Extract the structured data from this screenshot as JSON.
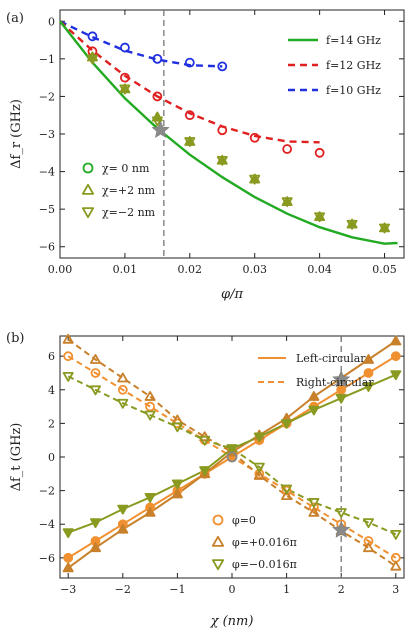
{
  "chart_data": [
    {
      "type": "scatter",
      "panel_label": "(a)",
      "xlabel": "φ/π",
      "ylabel": "Δf_r (GHz)",
      "xlim": [
        0,
        0.053
      ],
      "ylim": [
        -6.3,
        0.3
      ],
      "xticks": [
        0.0,
        0.01,
        0.02,
        0.03,
        0.04,
        0.05
      ],
      "xtick_labels": [
        "0.00",
        "0.01",
        "0.02",
        "0.03",
        "0.04",
        "0.05"
      ],
      "yticks": [
        0,
        -1,
        -2,
        -3,
        -4,
        -5,
        -6
      ],
      "ytick_labels": [
        "0",
        "−1",
        "−2",
        "−3",
        "−4",
        "−5",
        "−6"
      ],
      "vline_x": 0.016,
      "star": {
        "x": 0.0155,
        "y": -2.9
      },
      "legend_lines": [
        {
          "label": "f=14 GHz",
          "color": "#22aa22",
          "dash": "solid"
        },
        {
          "label": "f=12 GHz",
          "color": "#e02020",
          "dash": "dashed"
        },
        {
          "label": "f=10 GHz",
          "color": "#2030e0",
          "dash": "dashed"
        }
      ],
      "legend_markers": [
        {
          "label": "χ= 0 nm",
          "marker": "circle"
        },
        {
          "label": "χ=+2 nm",
          "marker": "triangle-up"
        },
        {
          "label": "χ=−2 nm",
          "marker": "triangle-down"
        }
      ],
      "series": [
        {
          "color": "#2030e0",
          "dash": "dashed",
          "curve_x": [
            0,
            0.005,
            0.01,
            0.015,
            0.02,
            0.025
          ],
          "curve_y": [
            0,
            -0.42,
            -0.78,
            -1.02,
            -1.17,
            -1.2
          ],
          "points_x": [
            0.005,
            0.01,
            0.015,
            0.02,
            0.025
          ],
          "points_y": [
            -0.4,
            -0.7,
            -1.0,
            -1.1,
            -1.2
          ]
        },
        {
          "color": "#e02020",
          "dash": "dashed",
          "curve_x": [
            0,
            0.005,
            0.01,
            0.015,
            0.02,
            0.025,
            0.03,
            0.035,
            0.04
          ],
          "curve_y": [
            0,
            -0.78,
            -1.45,
            -2.0,
            -2.45,
            -2.8,
            -3.05,
            -3.2,
            -3.22
          ],
          "points_x": [
            0.005,
            0.01,
            0.015,
            0.02,
            0.025,
            0.03,
            0.035,
            0.04
          ],
          "points_y": [
            -0.8,
            -1.5,
            -2.0,
            -2.5,
            -2.9,
            -3.1,
            -3.4,
            -3.5
          ]
        },
        {
          "color": "#22aa22",
          "dash": "solid",
          "curve_x": [
            0,
            0.005,
            0.01,
            0.015,
            0.02,
            0.025,
            0.03,
            0.035,
            0.04,
            0.045,
            0.05,
            0.052
          ],
          "curve_y": [
            0,
            -1.1,
            -2.05,
            -2.85,
            -3.55,
            -4.15,
            -4.68,
            -5.12,
            -5.48,
            -5.75,
            -5.92,
            -5.9
          ]
        },
        {
          "color": "#8a9a20",
          "marker": "triangle-up",
          "points_x": [
            0.005,
            0.01,
            0.015,
            0.02,
            0.025,
            0.03,
            0.035,
            0.04,
            0.045,
            0.05
          ],
          "points_y": [
            -0.95,
            -1.8,
            -2.55,
            -3.2,
            -3.7,
            -4.2,
            -4.8,
            -5.2,
            -5.4,
            -5.5
          ]
        },
        {
          "color": "#8a9a20",
          "marker": "triangle-down",
          "points_x": [
            0.005,
            0.01,
            0.015,
            0.02,
            0.025,
            0.03,
            0.035,
            0.04,
            0.045,
            0.05
          ],
          "points_y": [
            -1.0,
            -1.8,
            -2.65,
            -3.2,
            -3.7,
            -4.2,
            -4.8,
            -5.2,
            -5.4,
            -5.5
          ]
        }
      ]
    },
    {
      "type": "line",
      "panel_label": "(b)",
      "xlabel": "χ (nm)",
      "ylabel": "Δf_t (GHz)",
      "xlim": [
        -3.15,
        3.15
      ],
      "ylim": [
        -7.2,
        7.2
      ],
      "xticks": [
        -3,
        -2,
        -1,
        0,
        1,
        2,
        3
      ],
      "xtick_labels": [
        "−3",
        "−2",
        "−1",
        "0",
        "1",
        "2",
        "3"
      ],
      "yticks": [
        6,
        4,
        2,
        0,
        -2,
        -4,
        -6
      ],
      "ytick_labels": [
        "6",
        "4",
        "2",
        "0",
        "−2",
        "−4",
        "−6"
      ],
      "vline_x": 2,
      "stars": [
        {
          "x": 2,
          "y": 4.6
        },
        {
          "x": 2,
          "y": -4.35
        }
      ],
      "gray_circle": {
        "x": 0,
        "y": 0
      },
      "legend_lines": [
        {
          "label": "Left-circular",
          "color": "#f09030",
          "dash": "solid"
        },
        {
          "label": "Right-circular",
          "color": "#f09030",
          "dash": "dashed"
        }
      ],
      "legend_markers": [
        {
          "label": "φ=0",
          "marker": "circle",
          "color": "#f09030"
        },
        {
          "label": "φ=+0.016π",
          "marker": "triangle-up",
          "color": "#c8802a"
        },
        {
          "label": "φ=−0.016π",
          "marker": "triangle-down",
          "color": "#8a9a20"
        }
      ],
      "x": [
        -3,
        -2.5,
        -2,
        -1.5,
        -1,
        -0.5,
        0,
        0.5,
        1,
        1.5,
        2,
        2.5,
        3
      ],
      "series": [
        {
          "name": "phi0-left",
          "color": "#f09030",
          "dash": "solid",
          "marker": "circle",
          "filled": true,
          "values": [
            -6,
            -5,
            -4,
            -3,
            -2,
            -1,
            0,
            1,
            2,
            3,
            4,
            5,
            6
          ]
        },
        {
          "name": "phi0-right",
          "color": "#f09030",
          "dash": "dashed",
          "marker": "circle",
          "filled": false,
          "values": [
            6,
            5,
            4,
            3,
            2,
            1,
            0,
            -1,
            -2,
            -3,
            -4,
            -5,
            -6
          ]
        },
        {
          "name": "plus-left",
          "color": "#c8802a",
          "dash": "solid",
          "marker": "triangle-up",
          "filled": true,
          "values": [
            -6.6,
            -5.4,
            -4.3,
            -3.3,
            -2.2,
            -1.0,
            0.3,
            1.3,
            2.3,
            3.6,
            4.7,
            5.8,
            6.9
          ]
        },
        {
          "name": "plus-right",
          "color": "#c8802a",
          "dash": "dashed",
          "marker": "triangle-up",
          "filled": false,
          "values": [
            7.0,
            5.8,
            4.7,
            3.6,
            2.2,
            1.2,
            0.3,
            -1.1,
            -2.3,
            -3.3,
            -4.4,
            -5.4,
            -6.5
          ]
        },
        {
          "name": "minus-left",
          "color": "#8a9a20",
          "dash": "solid",
          "marker": "triangle-down",
          "filled": true,
          "values": [
            -4.5,
            -3.9,
            -3.1,
            -2.4,
            -1.6,
            -0.8,
            0.5,
            1.2,
            2.0,
            2.8,
            3.5,
            4.2,
            4.9
          ]
        },
        {
          "name": "minus-right",
          "color": "#8a9a20",
          "dash": "dashed",
          "marker": "triangle-down",
          "filled": false,
          "values": [
            4.8,
            4.0,
            3.2,
            2.5,
            1.8,
            1.0,
            0.5,
            -0.6,
            -1.9,
            -2.7,
            -3.3,
            -3.9,
            -4.6
          ]
        }
      ]
    }
  ]
}
